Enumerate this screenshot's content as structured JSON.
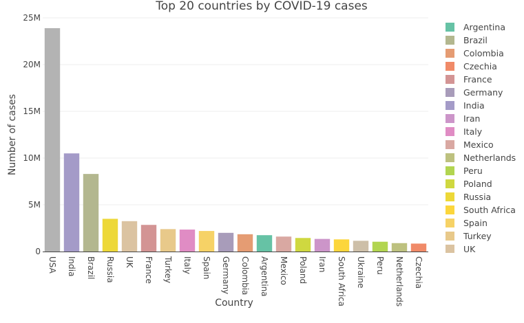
{
  "chart_data": {
    "type": "bar",
    "title": "Top 20 countries by COVID-19 cases",
    "xlabel": "Country",
    "ylabel": "Number of cases",
    "ylim": [
      0,
      25000000
    ],
    "yticks": [
      {
        "value": 0,
        "label": "0"
      },
      {
        "value": 5000000,
        "label": "5M"
      },
      {
        "value": 10000000,
        "label": "10M"
      },
      {
        "value": 15000000,
        "label": "15M"
      },
      {
        "value": 20000000,
        "label": "20M"
      },
      {
        "value": 25000000,
        "label": "25M"
      }
    ],
    "grid": true,
    "legend_placement": "right",
    "categories": [
      "USA",
      "India",
      "Brazil",
      "Russia",
      "UK",
      "France",
      "Turkey",
      "Italy",
      "Spain",
      "Germany",
      "Colombia",
      "Argentina",
      "Mexico",
      "Poland",
      "Iran",
      "South Africa",
      "Ukraine",
      "Peru",
      "Netherlands",
      "Czechia"
    ],
    "values": [
      23900000,
      10500000,
      8300000,
      3500000,
      3250000,
      2850000,
      2400000,
      2350000,
      2200000,
      2000000,
      1850000,
      1750000,
      1600000,
      1450000,
      1350000,
      1300000,
      1150000,
      1050000,
      900000,
      850000
    ],
    "colors": {
      "Argentina": "#66c2a5",
      "Brazil": "#b3b78f",
      "Colombia": "#e59c73",
      "Czechia": "#f08a68",
      "France": "#d39494",
      "Germany": "#a89cba",
      "India": "#a49bc8",
      "Iran": "#cc95c9",
      "Italy": "#e08cc4",
      "Mexico": "#d9a8a2",
      "Netherlands": "#bdc17f",
      "Peru": "#b2d550",
      "Poland": "#cfd840",
      "Russia": "#edd838",
      "South Africa": "#fcd63b",
      "Spain": "#f6d266",
      "Turkey": "#e8c98a",
      "UK": "#dbc3a1",
      "Ukraine": "#cdbfa8",
      "USA": "#b3b3b3"
    },
    "legend": [
      "Argentina",
      "Brazil",
      "Colombia",
      "Czechia",
      "France",
      "Germany",
      "India",
      "Iran",
      "Italy",
      "Mexico",
      "Netherlands",
      "Peru",
      "Poland",
      "Russia",
      "South Africa",
      "Spain",
      "Turkey",
      "UK"
    ]
  }
}
